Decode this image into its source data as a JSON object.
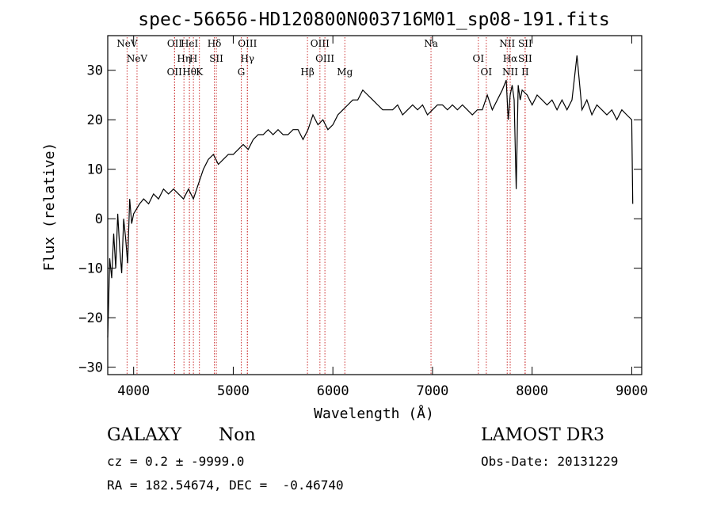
{
  "chart_data": {
    "type": "line",
    "title": "spec-56656-HD120800N003716M01_sp08-191.fits",
    "xlabel": "Wavelength (Å)",
    "ylabel": "Flux (relative)",
    "xlim": [
      3740,
      9100
    ],
    "ylim": [
      -31.5,
      37
    ],
    "xticks": [
      4000,
      5000,
      6000,
      7000,
      8000,
      9000
    ],
    "yticks": [
      -30,
      -20,
      -10,
      0,
      10,
      20,
      30
    ],
    "grid": false,
    "series": [
      {
        "x": [
          3740,
          3760,
          3780,
          3800,
          3820,
          3840,
          3860,
          3880,
          3900,
          3920,
          3940,
          3960,
          3980,
          4000,
          4030,
          4060,
          4100,
          4150,
          4200,
          4250,
          4300,
          4350,
          4400,
          4450,
          4500,
          4550,
          4600,
          4650,
          4700,
          4750,
          4800,
          4850,
          4900,
          4950,
          5000,
          5050,
          5100,
          5150,
          5200,
          5250,
          5300,
          5350,
          5400,
          5450,
          5500,
          5550,
          5600,
          5650,
          5700,
          5750,
          5800,
          5850,
          5900,
          5950,
          6000,
          6050,
          6100,
          6150,
          6200,
          6250,
          6300,
          6350,
          6400,
          6450,
          6500,
          6550,
          6600,
          6650,
          6700,
          6750,
          6800,
          6850,
          6900,
          6950,
          7000,
          7050,
          7100,
          7150,
          7200,
          7250,
          7300,
          7350,
          7400,
          7450,
          7500,
          7550,
          7600,
          7650,
          7700,
          7740,
          7760,
          7780,
          7800,
          7820,
          7840,
          7860,
          7880,
          7900,
          7950,
          8000,
          8050,
          8100,
          8150,
          8200,
          8250,
          8300,
          8350,
          8400,
          8450,
          8500,
          8550,
          8600,
          8650,
          8700,
          8750,
          8800,
          8850,
          8900,
          8950,
          9000,
          9010
        ],
        "y": [
          -24,
          -8,
          -12,
          -3,
          -10,
          1,
          -6,
          -11,
          0,
          -4,
          -9,
          4,
          -1,
          1,
          2,
          3,
          4,
          3,
          5,
          4,
          6,
          5,
          6,
          5,
          4,
          6,
          4,
          7,
          10,
          12,
          13,
          11,
          12,
          13,
          13,
          14,
          15,
          14,
          16,
          17,
          17,
          18,
          17,
          18,
          17,
          17,
          18,
          18,
          16,
          18,
          21,
          19,
          20,
          18,
          19,
          21,
          22,
          23,
          24,
          24,
          26,
          25,
          24,
          23,
          22,
          22,
          22,
          23,
          21,
          22,
          23,
          22,
          23,
          21,
          22,
          23,
          23,
          22,
          23,
          22,
          23,
          22,
          21,
          22,
          22,
          25,
          22,
          24,
          26,
          28,
          20,
          25,
          27,
          24,
          6,
          27,
          24,
          26,
          25,
          23,
          25,
          24,
          23,
          24,
          22,
          24,
          22,
          24,
          33,
          22,
          24,
          21,
          23,
          22,
          21,
          22,
          20,
          22,
          21,
          20,
          3
        ]
      }
    ],
    "lines": [
      {
        "x": 3934,
        "label": "NeV"
      },
      {
        "x": 4034,
        "label": "NeV"
      },
      {
        "x": 4410,
        "label": "OII"
      },
      {
        "x": 4412,
        "label": "OII"
      },
      {
        "x": 4505,
        "label": "Hη"
      },
      {
        "x": 4560,
        "label": "Hθ"
      },
      {
        "x": 4560,
        "label": "HeI"
      },
      {
        "x": 4600,
        "label": "H"
      },
      {
        "x": 4660,
        "label": "K"
      },
      {
        "x": 4810,
        "label": "Hδ"
      },
      {
        "x": 4830,
        "label": "SII"
      },
      {
        "x": 5080,
        "label": "G"
      },
      {
        "x": 5142,
        "label": "OIII"
      },
      {
        "x": 5142,
        "label": "Hγ"
      },
      {
        "x": 5745,
        "label": "Hβ"
      },
      {
        "x": 5870,
        "label": "OIII"
      },
      {
        "x": 5920,
        "label": "OIII"
      },
      {
        "x": 6120,
        "label": "Mg"
      },
      {
        "x": 6985,
        "label": "Na"
      },
      {
        "x": 7460,
        "label": "OI"
      },
      {
        "x": 7540,
        "label": "OI"
      },
      {
        "x": 7750,
        "label": "NII"
      },
      {
        "x": 7780,
        "label": "Hα"
      },
      {
        "x": 7780,
        "label": "NII"
      },
      {
        "x": 7930,
        "label": "SII"
      },
      {
        "x": 7930,
        "label": "SII"
      },
      {
        "x": 7930,
        "label": "II"
      }
    ]
  },
  "info": {
    "class": "GALAXY",
    "subclass": "Non",
    "survey": "LAMOST DR3",
    "cz": "cz = 0.2 ± -9999.0",
    "obs_date": "Obs-Date: 20131229",
    "coords": "RA = 182.54674, DEC =  -0.46740"
  },
  "colors": {
    "spectrum": "#000000",
    "line_marker": "#cc3333",
    "axes": "#000000"
  }
}
